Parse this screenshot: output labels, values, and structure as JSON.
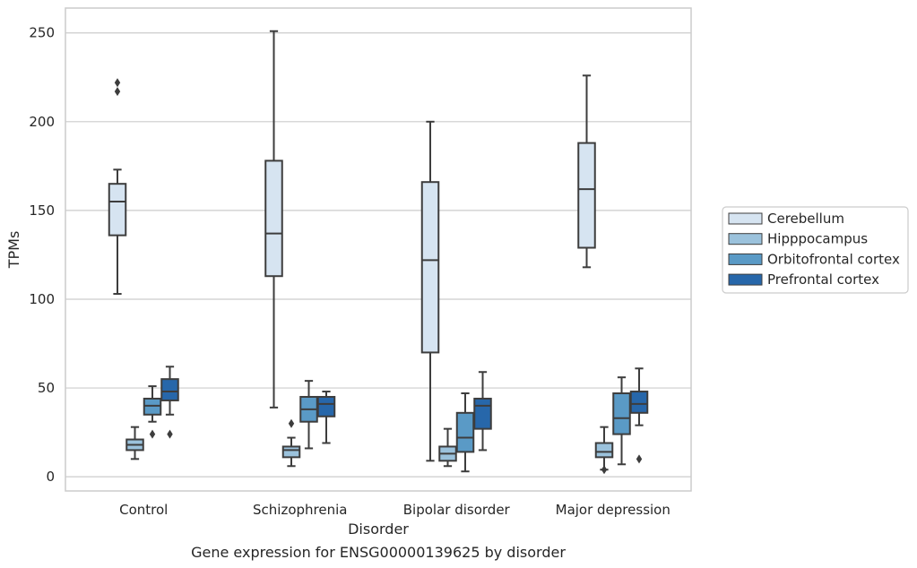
{
  "chart_data": {
    "type": "box",
    "xlabel": "Disorder",
    "ylabel": "TPMs",
    "caption": "Gene expression for ENSG00000139625 by disorder",
    "ylim": [
      -8,
      264
    ],
    "yticks": [
      0,
      50,
      100,
      150,
      200,
      250
    ],
    "grid": "horizontal",
    "legend_position": "right",
    "categories": [
      "Control",
      "Schizophrenia",
      "Bipolar disorder",
      "Major depression"
    ],
    "series": [
      {
        "name": "Cerebellum",
        "color": "#d6e4f1",
        "boxes": [
          {
            "whislo": 103,
            "q1": 136,
            "med": 155,
            "q3": 165,
            "whishi": 173,
            "fliers": [
              217,
              222
            ]
          },
          {
            "whislo": 39,
            "q1": 113,
            "med": 137,
            "q3": 178,
            "whishi": 251,
            "fliers": []
          },
          {
            "whislo": 9,
            "q1": 70,
            "med": 122,
            "q3": 166,
            "whishi": 200,
            "fliers": []
          },
          {
            "whislo": 118,
            "q1": 129,
            "med": 162,
            "q3": 188,
            "whishi": 226,
            "fliers": []
          }
        ]
      },
      {
        "name": "Hipppocampus",
        "color": "#9bc2dc",
        "boxes": [
          {
            "whislo": 10,
            "q1": 15,
            "med": 18,
            "q3": 21,
            "whishi": 28,
            "fliers": []
          },
          {
            "whislo": 6,
            "q1": 11,
            "med": 15,
            "q3": 17,
            "whishi": 22,
            "fliers": [
              30
            ]
          },
          {
            "whislo": 6,
            "q1": 9,
            "med": 13,
            "q3": 17,
            "whishi": 27,
            "fliers": []
          },
          {
            "whislo": 4,
            "q1": 11,
            "med": 14,
            "q3": 19,
            "whishi": 28,
            "fliers": [
              4
            ]
          }
        ]
      },
      {
        "name": "Orbitofrontal cortex",
        "color": "#5a9ac6",
        "boxes": [
          {
            "whislo": 31,
            "q1": 35,
            "med": 40,
            "q3": 44,
            "whishi": 51,
            "fliers": [
              24
            ]
          },
          {
            "whislo": 16,
            "q1": 31,
            "med": 38,
            "q3": 45,
            "whishi": 54,
            "fliers": []
          },
          {
            "whislo": 3,
            "q1": 14,
            "med": 22,
            "q3": 36,
            "whishi": 47,
            "fliers": []
          },
          {
            "whislo": 7,
            "q1": 24,
            "med": 33,
            "q3": 47,
            "whishi": 56,
            "fliers": []
          }
        ]
      },
      {
        "name": "Prefrontal cortex",
        "color": "#2767aa",
        "boxes": [
          {
            "whislo": 35,
            "q1": 43,
            "med": 48,
            "q3": 55,
            "whishi": 62,
            "fliers": [
              24
            ]
          },
          {
            "whislo": 19,
            "q1": 34,
            "med": 41,
            "q3": 45,
            "whishi": 48,
            "fliers": []
          },
          {
            "whislo": 15,
            "q1": 27,
            "med": 40,
            "q3": 44,
            "whishi": 59,
            "fliers": []
          },
          {
            "whislo": 29,
            "q1": 36,
            "med": 41,
            "q3": 48,
            "whishi": 61,
            "fliers": [
              10
            ]
          }
        ]
      }
    ]
  }
}
